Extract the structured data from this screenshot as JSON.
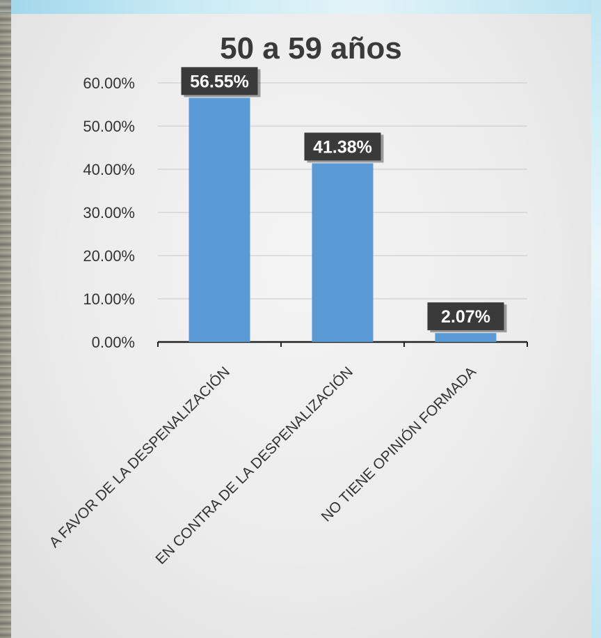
{
  "chart_data": {
    "type": "bar",
    "title": "50 a 59 años",
    "categories": [
      "A FAVOR DE LA DESPENALIZACIÓN",
      "EN CONTRA DE LA DESPENALIZACIÓN",
      "NO TIENE OPINIÓN FORMADA"
    ],
    "values": [
      56.55,
      41.38,
      2.07
    ],
    "data_labels": [
      "56.55%",
      "41.38%",
      "2.07%"
    ],
    "y_ticks": [
      "0.00%",
      "10.00%",
      "20.00%",
      "30.00%",
      "40.00%",
      "50.00%",
      "60.00%"
    ],
    "ylim": [
      0,
      60
    ],
    "grid": true,
    "legend": "none",
    "bar_color": "#5b9bd5",
    "label_bg": "#3a3a3a"
  }
}
